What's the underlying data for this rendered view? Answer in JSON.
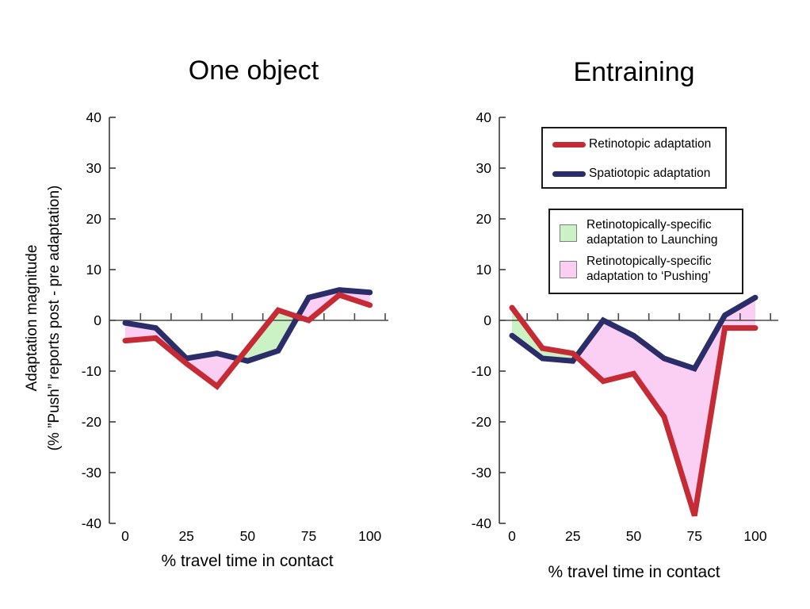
{
  "colors": {
    "red": "#C42B35",
    "navy": "#2B2D69",
    "green_fill": "#CBF2C5",
    "pink_fill": "#FBCEF3",
    "axis": "#4a4a4a",
    "yaxis": "#3a3a3a"
  },
  "y_axis_title": {
    "line1": "Adaptation magnitude",
    "line2": "(% ”Push” reports post - pre adaptation)"
  },
  "legend_lines": {
    "items": [
      {
        "label": "Retinotopic adaptation",
        "color_key": "red"
      },
      {
        "label": "Spatiotopic adaptation",
        "color_key": "navy"
      }
    ]
  },
  "legend_fills": {
    "items": [
      {
        "label_line1": "Retinotopically-specific",
        "label_line2": "adaptation to Launching",
        "color_key": "green_fill"
      },
      {
        "label_line1": "Retinotopically-specific",
        "label_line2": "adaptation to ‘Pushing’",
        "color_key": "pink_fill"
      }
    ]
  },
  "chart_data": [
    {
      "type": "line",
      "title": "One object",
      "xlabel": "% travel time in contact",
      "x": [
        0,
        12.5,
        25,
        37.5,
        50,
        62.5,
        75,
        87.5,
        100
      ],
      "series": [
        {
          "name": "Retinotopic adaptation",
          "color_key": "red",
          "values": [
            -4,
            -3.5,
            -8.5,
            -13,
            -5.5,
            2,
            0,
            5,
            3
          ]
        },
        {
          "name": "Spatiotopic adaptation",
          "color_key": "navy",
          "values": [
            -0.5,
            -1.5,
            -7.5,
            -6.5,
            -8,
            -6,
            4.5,
            6,
            5.5
          ]
        }
      ],
      "fill_rule": "red_above_navy = green, navy_above_red = pink",
      "ylim": [
        -40,
        40
      ],
      "y_ticks": [
        {
          "value": 40,
          "label": "40"
        },
        {
          "value": 30,
          "label": "30"
        },
        {
          "value": 20,
          "label": "20"
        },
        {
          "value": 10,
          "label": "10"
        },
        {
          "value": 0,
          "label": "0"
        },
        {
          "value": -10,
          "label": "-10"
        },
        {
          "value": -20,
          "label": "-20"
        },
        {
          "value": -30,
          "label": "-30"
        },
        {
          "value": -40,
          "label": "-40"
        }
      ],
      "x_tick_labels": [
        {
          "value": 0,
          "label": "0"
        },
        {
          "value": 25,
          "label": "25"
        },
        {
          "value": 50,
          "label": "50"
        },
        {
          "value": 75,
          "label": "75"
        },
        {
          "value": 100,
          "label": "100"
        }
      ],
      "grid": false,
      "x_axis_position": "y=0"
    },
    {
      "type": "line",
      "title": "Entraining",
      "xlabel": "% travel time in contact",
      "x": [
        0,
        12.5,
        25,
        37.5,
        50,
        62.5,
        75,
        87.5,
        100
      ],
      "series": [
        {
          "name": "Retinotopic adaptation",
          "color_key": "red",
          "values": [
            2.5,
            -5.5,
            -6.5,
            -12,
            -10.5,
            -19,
            -38.5,
            -1.5,
            -1.5
          ]
        },
        {
          "name": "Spatiotopic adaptation",
          "color_key": "navy",
          "values": [
            -3,
            -7.5,
            -8,
            0,
            -3,
            -7.5,
            -9.5,
            1,
            4.5
          ]
        }
      ],
      "fill_rule": "red_above_navy = green, navy_above_red = pink",
      "ylim": [
        -40,
        40
      ],
      "y_ticks": [
        {
          "value": 40,
          "label": "40"
        },
        {
          "value": 30,
          "label": "30"
        },
        {
          "value": 20,
          "label": "20"
        },
        {
          "value": 10,
          "label": "10"
        },
        {
          "value": 0,
          "label": "0"
        },
        {
          "value": -10,
          "label": "-10"
        },
        {
          "value": -20,
          "label": "-20"
        },
        {
          "value": -30,
          "label": "-30"
        },
        {
          "value": -40,
          "label": "-40"
        }
      ],
      "x_tick_labels": [
        {
          "value": 0,
          "label": "0"
        },
        {
          "value": 25,
          "label": "25"
        },
        {
          "value": 50,
          "label": "50"
        },
        {
          "value": 75,
          "label": "75"
        },
        {
          "value": 100,
          "label": "100"
        }
      ],
      "grid": false,
      "x_axis_position": "y=0"
    }
  ]
}
